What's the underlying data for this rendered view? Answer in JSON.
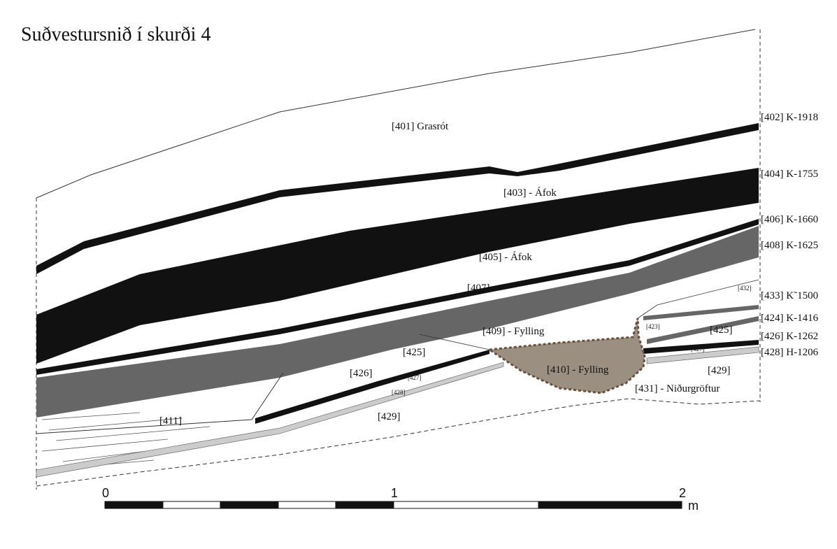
{
  "title": "Suðvestursnið í skurði 4",
  "labels": [
    "[401] Grasrót",
    "[403] - Áfok",
    "[405] - Áfok",
    "[407]",
    "[409] - Fylling",
    "[425]",
    "[426]",
    "[427]",
    "[428]",
    "[429]",
    "[411]",
    "[410] - Fylling",
    "[431] - Niðurgröftur",
    "[423]",
    "[425]",
    "[427]",
    "[429]",
    "[432]"
  ],
  "right_labels": [
    "[402] K-1918",
    "[404] K-1755",
    "[406] K-1660",
    "[408] K-1625",
    "[433] K˜1500",
    "[424] K-1416",
    "[426] K-1262",
    "[428]  H-1206"
  ],
  "scale": {
    "ticks": [
      "0",
      "1",
      "2"
    ],
    "unit": "m"
  }
}
